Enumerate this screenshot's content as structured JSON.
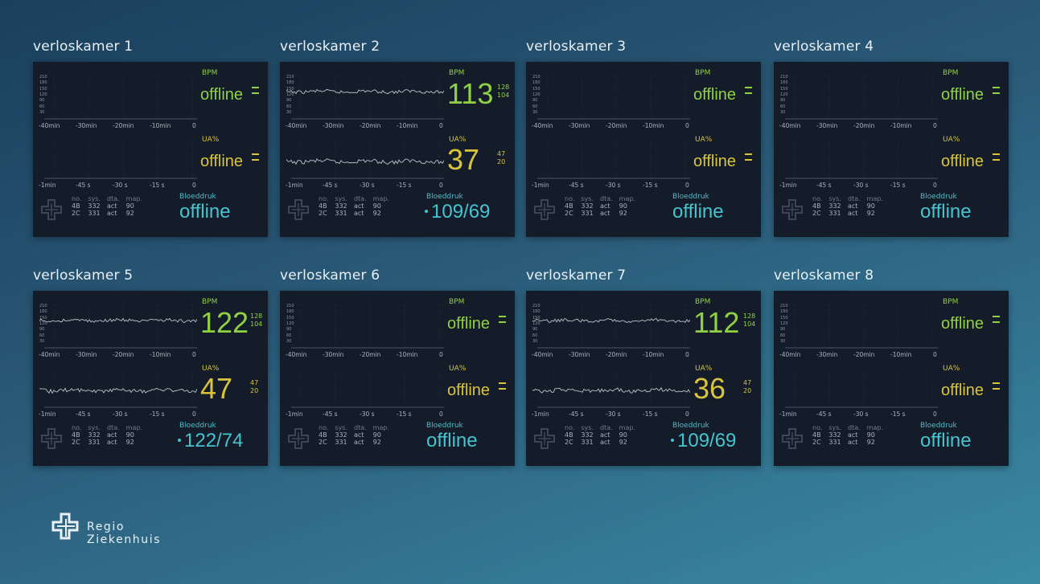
{
  "labels": {
    "bpm": "BPM",
    "ua": "UA%",
    "bloeddruk": "Bloeddruk",
    "offline": "offline",
    "bpm_x_ticks": [
      "-40min",
      "-30min",
      "-20min",
      "-10min",
      "0"
    ],
    "ua_x_ticks": [
      "-1min",
      "-45 s",
      "-30 s",
      "-15 s",
      "0"
    ],
    "y_ticks": [
      "210",
      "180",
      "150",
      "120",
      "90",
      "60",
      "30"
    ],
    "table_head": [
      "no.",
      "sys.",
      "dta.",
      "map."
    ],
    "table_rows": [
      [
        "4B",
        "332",
        "act",
        "90"
      ],
      [
        "2C",
        "331",
        "act",
        "92"
      ]
    ]
  },
  "brand": {
    "line1": "Regio",
    "line2": "Ziekenhuis"
  },
  "colors": {
    "bpm": "#8fd045",
    "ua": "#d8c43c",
    "bp": "#45c4d0",
    "panel": "#151c29"
  },
  "rooms": [
    {
      "name": "verloskamer 1",
      "online": false
    },
    {
      "name": "verloskamer 2",
      "online": true,
      "bpm": "113",
      "bpm_hi": "128",
      "bpm_lo": "104",
      "ua": "37",
      "ua_hi": "47",
      "ua_lo": "20",
      "bp": "109/69"
    },
    {
      "name": "verloskamer 3",
      "online": false
    },
    {
      "name": "verloskamer 4",
      "online": false
    },
    {
      "name": "verloskamer 5",
      "online": true,
      "bpm": "122",
      "bpm_hi": "128",
      "bpm_lo": "104",
      "ua": "47",
      "ua_hi": "47",
      "ua_lo": "20",
      "bp": "122/74"
    },
    {
      "name": "verloskamer 6",
      "online": false
    },
    {
      "name": "verloskamer 7",
      "online": true,
      "bpm": "112",
      "bpm_hi": "128",
      "bpm_lo": "104",
      "ua": "36",
      "ua_hi": "47",
      "ua_lo": "20",
      "bp": "109/69"
    },
    {
      "name": "verloskamer 8",
      "online": false
    }
  ]
}
